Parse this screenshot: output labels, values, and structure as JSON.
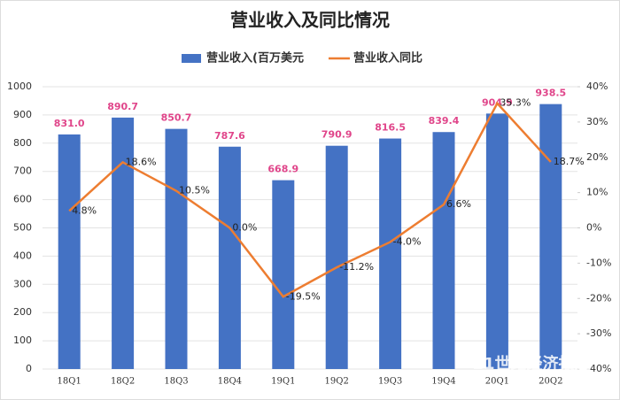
{
  "chart_data": {
    "type": "bar",
    "title": "营业收入及同比情况",
    "categories": [
      "18Q1",
      "18Q2",
      "18Q3",
      "18Q4",
      "19Q1",
      "19Q2",
      "19Q3",
      "19Q4",
      "20Q1",
      "20Q2"
    ],
    "series": [
      {
        "name": "营业收入(百万美元",
        "type": "bar",
        "color": "#4472c4",
        "label_color": "#e0458a",
        "values": [
          831.0,
          890.7,
          850.7,
          787.6,
          668.9,
          790.9,
          816.5,
          839.4,
          904.9,
          938.5
        ],
        "value_labels": [
          "831.0",
          "890.7",
          "850.7",
          "787.6",
          "668.9",
          "790.9",
          "816.5",
          "839.4",
          "904.9",
          "938.5"
        ]
      },
      {
        "name": "营业收入同比",
        "type": "line",
        "axis": "y2",
        "color": "#ed7d31",
        "label_color": "#222222",
        "values": [
          4.8,
          18.6,
          10.5,
          0.0,
          -19.5,
          -11.2,
          -4.0,
          6.6,
          35.3,
          18.7
        ],
        "value_labels": [
          "4.8%",
          "18.6%",
          "10.5%",
          "0.0%",
          "-19.5%",
          "-11.2%",
          "-4.0%",
          "6.6%",
          "35.3%",
          "18.7%"
        ]
      }
    ],
    "ylim": [
      0,
      1000
    ],
    "yticks": [
      0,
      100,
      200,
      300,
      400,
      500,
      600,
      700,
      800,
      900,
      1000
    ],
    "y2lim": [
      -40,
      40
    ],
    "y2ticks": [
      {
        "value": -40,
        "label": "-40%"
      },
      {
        "value": -30,
        "label": "-30%"
      },
      {
        "value": -20,
        "label": "-20%"
      },
      {
        "value": -10,
        "label": "-10%"
      },
      {
        "value": 0,
        "label": "0%"
      },
      {
        "value": 10,
        "label": "10%"
      },
      {
        "value": 20,
        "label": "20%"
      },
      {
        "value": 30,
        "label": "30%"
      },
      {
        "value": 40,
        "label": "40%"
      }
    ],
    "grid": true,
    "legend": "top",
    "watermark": "21世纪经济报道"
  }
}
